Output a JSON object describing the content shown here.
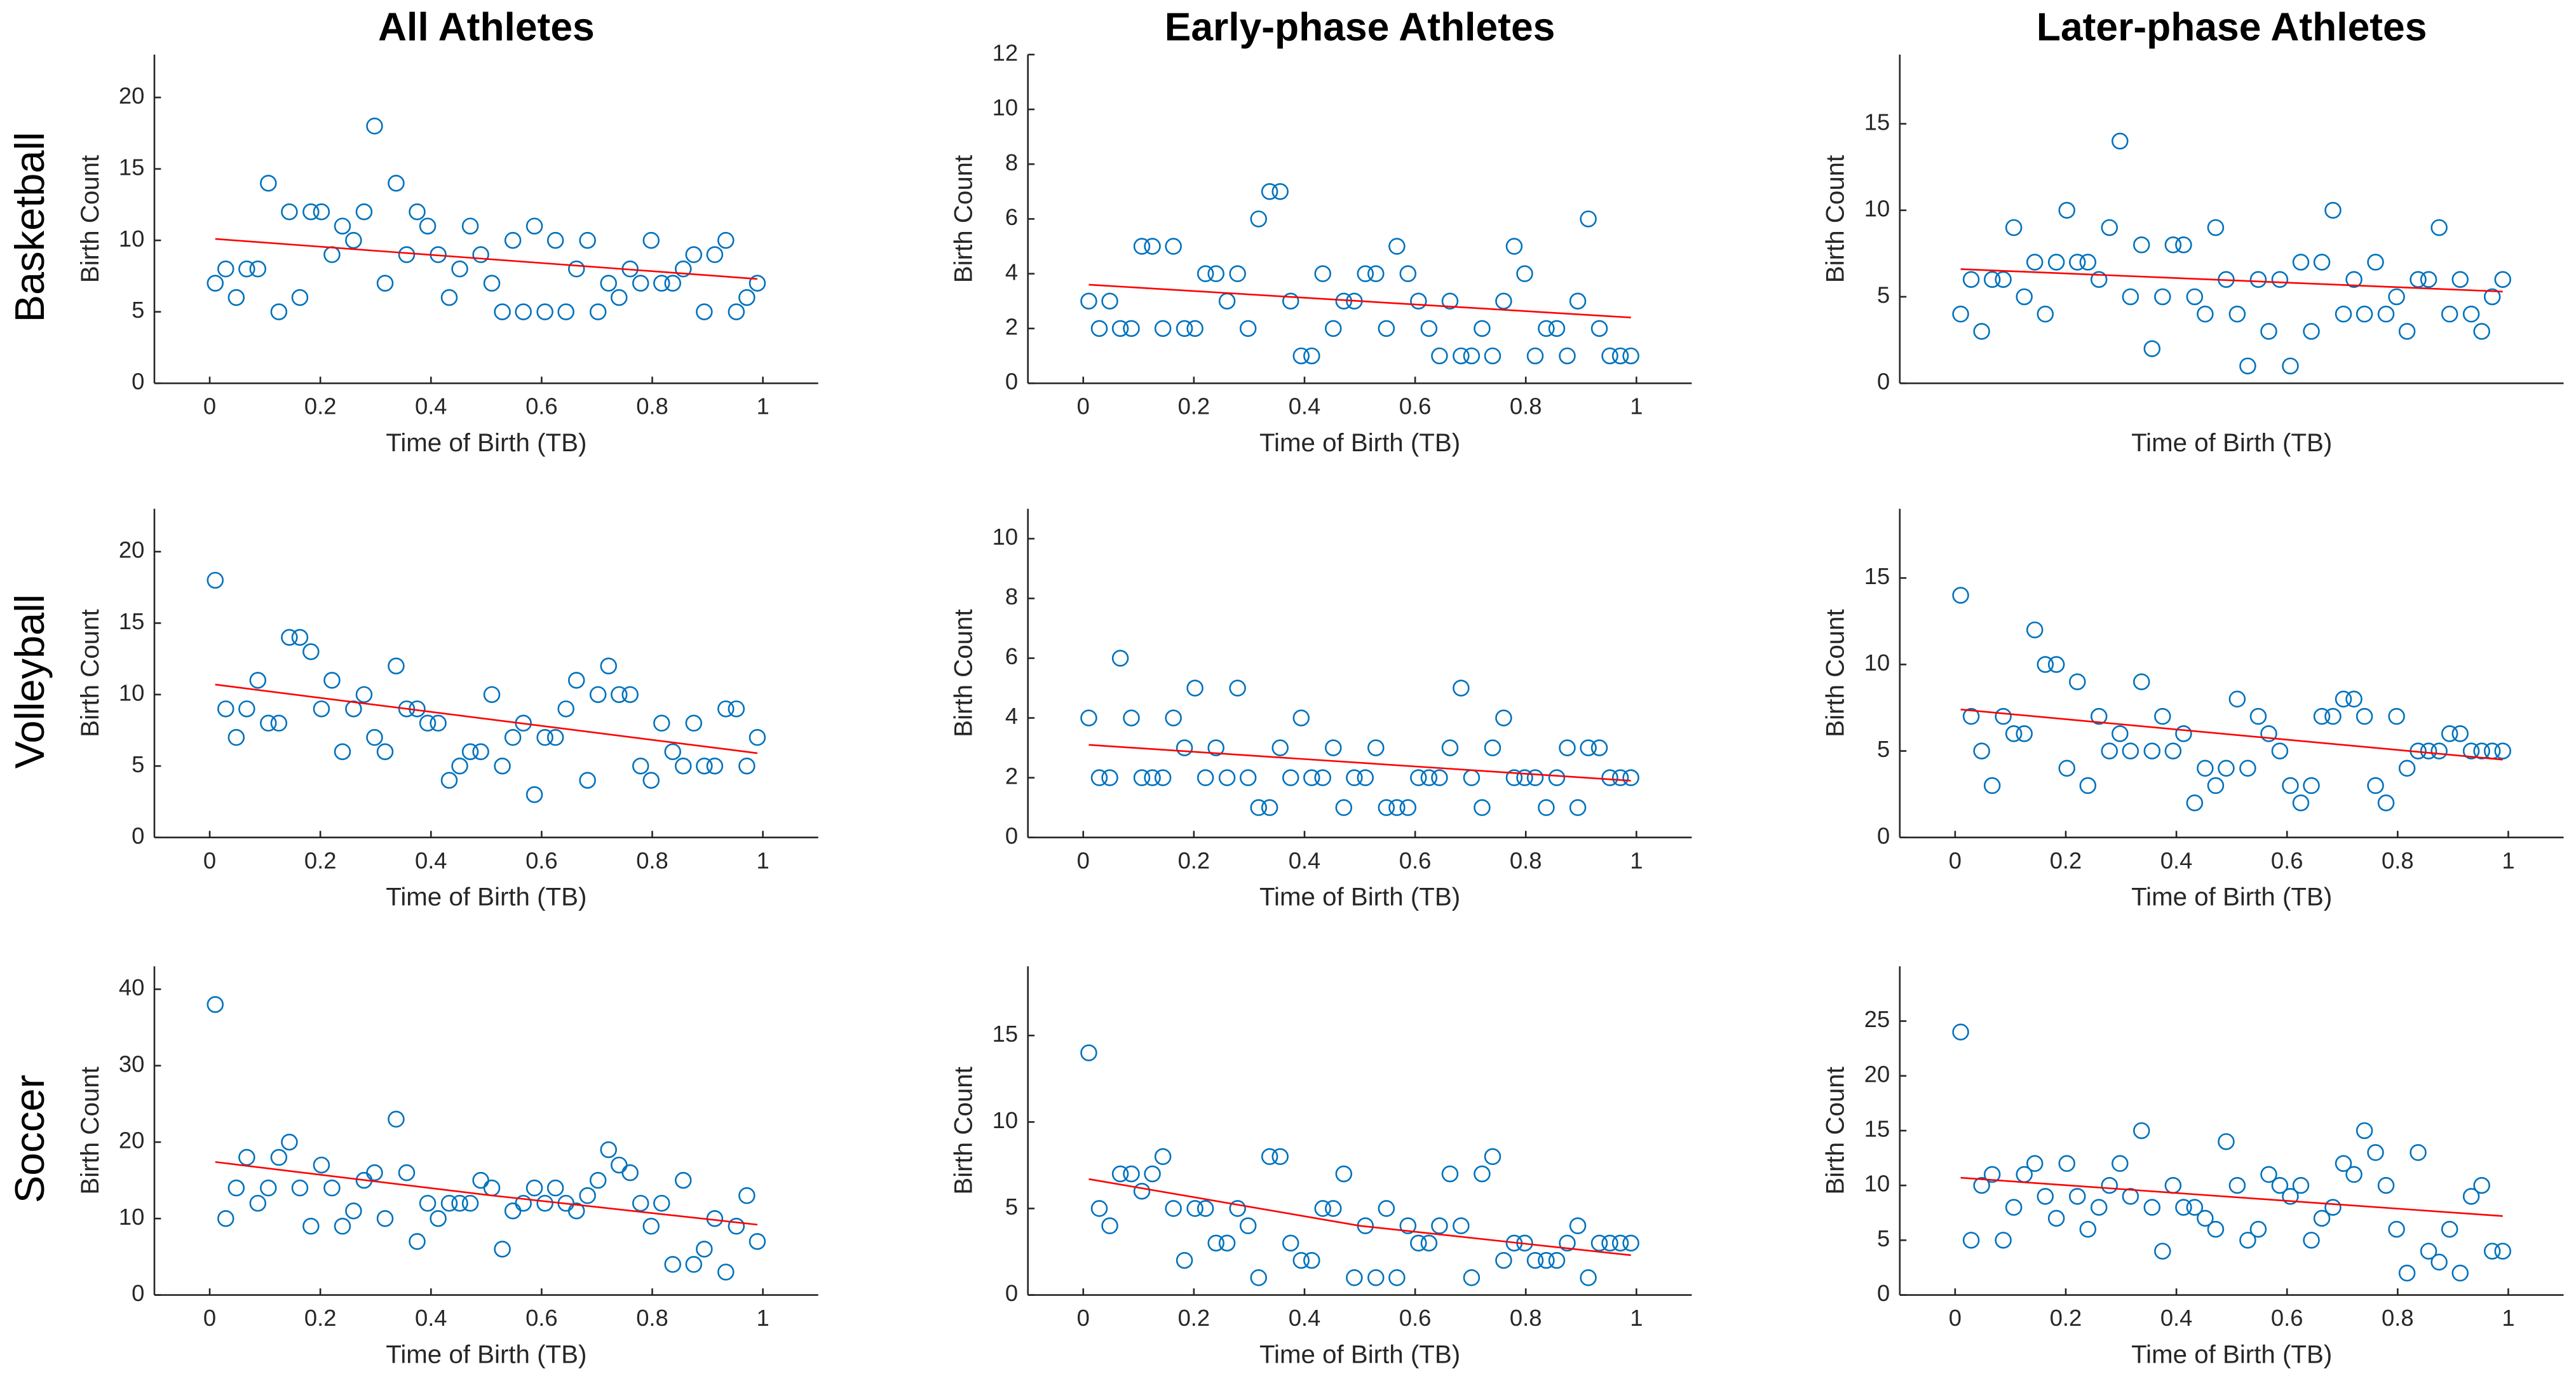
{
  "column_titles": [
    "All Athletes",
    "Early-phase Athletes",
    "Later-phase Athletes"
  ],
  "row_labels": [
    "Basketball",
    "Volleyball",
    "Soccer"
  ],
  "chart_data": [
    {
      "type": "scatter",
      "xlabel": "Time of Birth (TB)",
      "ylabel": "Birth Count",
      "color": "#0072bd",
      "x": [
        0.01,
        0.029,
        0.048,
        0.067,
        0.087,
        0.106,
        0.125,
        0.144,
        0.163,
        0.183,
        0.202,
        0.221,
        0.24,
        0.26,
        0.279,
        0.298,
        0.317,
        0.337,
        0.356,
        0.375,
        0.394,
        0.413,
        0.433,
        0.452,
        0.471,
        0.49,
        0.51,
        0.529,
        0.548,
        0.567,
        0.587,
        0.606,
        0.625,
        0.644,
        0.663,
        0.683,
        0.702,
        0.721,
        0.74,
        0.76,
        0.779,
        0.798,
        0.817,
        0.837,
        0.856,
        0.875,
        0.894,
        0.913,
        0.933,
        0.952,
        0.971,
        0.99
      ],
      "values": [
        7,
        8,
        6,
        8,
        8,
        14,
        5,
        12,
        6,
        12,
        12,
        9,
        11,
        10,
        12,
        18,
        7,
        14,
        9,
        12,
        11,
        9,
        6,
        8,
        11,
        9,
        7,
        5,
        10,
        5,
        11,
        5,
        10,
        5,
        8,
        10,
        5,
        7,
        6,
        8,
        7,
        10,
        7,
        7,
        8,
        9,
        5,
        9,
        10,
        5,
        6,
        7
      ],
      "fit": {
        "color": "#ff0000",
        "x": [
          0.01,
          0.99
        ],
        "values": [
          10.1,
          7.3
        ]
      },
      "xlim": [
        -0.1,
        1.1
      ],
      "ylim": [
        0,
        23
      ],
      "xticks": [
        0,
        0.2,
        0.4,
        0.6,
        0.8,
        1
      ],
      "yticks": [
        0,
        5,
        10,
        15,
        20
      ]
    },
    {
      "type": "scatter",
      "xlabel": "Time of Birth (TB)",
      "ylabel": "Birth Count",
      "color": "#0072bd",
      "x": [
        0.01,
        0.029,
        0.048,
        0.067,
        0.087,
        0.106,
        0.125,
        0.144,
        0.163,
        0.183,
        0.202,
        0.221,
        0.24,
        0.26,
        0.279,
        0.298,
        0.317,
        0.337,
        0.356,
        0.375,
        0.394,
        0.413,
        0.433,
        0.452,
        0.471,
        0.49,
        0.51,
        0.529,
        0.548,
        0.567,
        0.587,
        0.606,
        0.625,
        0.644,
        0.663,
        0.683,
        0.702,
        0.721,
        0.74,
        0.76,
        0.779,
        0.798,
        0.817,
        0.837,
        0.856,
        0.875,
        0.894,
        0.913,
        0.933,
        0.952,
        0.971,
        0.99
      ],
      "values": [
        3,
        2,
        3,
        2,
        2,
        5,
        5,
        2,
        5,
        2,
        2,
        4,
        4,
        3,
        4,
        2,
        6,
        7,
        7,
        3,
        1,
        1,
        4,
        2,
        3,
        3,
        4,
        4,
        2,
        5,
        4,
        3,
        2,
        1,
        3,
        1,
        1,
        2,
        1,
        3,
        5,
        4,
        1,
        2,
        2,
        1,
        3,
        6,
        2,
        1,
        1,
        1
      ],
      "fit": {
        "color": "#ff0000",
        "x": [
          0.01,
          0.99
        ],
        "values": [
          3.6,
          2.4
        ]
      },
      "xlim": [
        -0.1,
        1.1
      ],
      "ylim": [
        0,
        12
      ],
      "xticks": [
        0,
        0.2,
        0.4,
        0.6,
        0.8,
        1
      ],
      "yticks": [
        0,
        2,
        4,
        6,
        8,
        10,
        12
      ]
    },
    {
      "type": "scatter",
      "xlabel": "Time of Birth (TB)",
      "ylabel": "Birth Count",
      "color": "#0072bd",
      "x": [
        0.01,
        0.029,
        0.048,
        0.067,
        0.087,
        0.106,
        0.125,
        0.144,
        0.163,
        0.183,
        0.202,
        0.221,
        0.24,
        0.26,
        0.279,
        0.298,
        0.317,
        0.337,
        0.356,
        0.375,
        0.394,
        0.413,
        0.433,
        0.452,
        0.471,
        0.49,
        0.51,
        0.529,
        0.548,
        0.567,
        0.587,
        0.606,
        0.625,
        0.644,
        0.663,
        0.683,
        0.702,
        0.721,
        0.74,
        0.76,
        0.779,
        0.798,
        0.817,
        0.837,
        0.856,
        0.875,
        0.894,
        0.913,
        0.933,
        0.952,
        0.971,
        0.99
      ],
      "values": [
        4,
        6,
        3,
        6,
        6,
        9,
        5,
        7,
        4,
        7,
        10,
        7,
        7,
        6,
        9,
        14,
        5,
        8,
        2,
        5,
        8,
        8,
        5,
        4,
        9,
        6,
        4,
        1,
        6,
        3,
        6,
        1,
        7,
        3,
        7,
        10,
        4,
        6,
        4,
        7,
        4,
        5,
        3,
        6,
        6,
        9,
        4,
        6,
        4,
        3,
        5,
        6
      ],
      "fit": {
        "color": "#ff0000",
        "x": [
          0.01,
          0.99
        ],
        "values": [
          6.6,
          5.3
        ]
      },
      "xlim": [
        -0.1,
        1.1
      ],
      "ylim": [
        0,
        19
      ],
      "xticks": [],
      "yticks": [
        0,
        5,
        10,
        15
      ]
    },
    {
      "type": "scatter",
      "xlabel": "Time of Birth (TB)",
      "ylabel": "Birth Count",
      "color": "#0072bd",
      "x": [
        0.01,
        0.029,
        0.048,
        0.067,
        0.087,
        0.106,
        0.125,
        0.144,
        0.163,
        0.183,
        0.202,
        0.221,
        0.24,
        0.26,
        0.279,
        0.298,
        0.317,
        0.337,
        0.356,
        0.375,
        0.394,
        0.413,
        0.433,
        0.452,
        0.471,
        0.49,
        0.51,
        0.529,
        0.548,
        0.567,
        0.587,
        0.606,
        0.625,
        0.644,
        0.663,
        0.683,
        0.702,
        0.721,
        0.74,
        0.76,
        0.779,
        0.798,
        0.817,
        0.837,
        0.856,
        0.875,
        0.894,
        0.913,
        0.933,
        0.952,
        0.971,
        0.99
      ],
      "values": [
        18,
        9,
        7,
        9,
        11,
        8,
        8,
        14,
        14,
        13,
        9,
        11,
        6,
        9,
        10,
        7,
        6,
        12,
        9,
        9,
        8,
        8,
        4,
        5,
        6,
        6,
        10,
        5,
        7,
        8,
        3,
        7,
        7,
        9,
        11,
        4,
        10,
        12,
        10,
        10,
        5,
        4,
        8,
        6,
        5,
        8,
        5,
        5,
        9,
        9,
        5,
        7
      ],
      "fit": {
        "color": "#ff0000",
        "x": [
          0.01,
          0.99
        ],
        "values": [
          10.7,
          5.9
        ]
      },
      "xlim": [
        -0.1,
        1.1
      ],
      "ylim": [
        0,
        23
      ],
      "xticks": [
        0,
        0.2,
        0.4,
        0.6,
        0.8,
        1
      ],
      "yticks": [
        0,
        5,
        10,
        15,
        20
      ]
    },
    {
      "type": "scatter",
      "xlabel": "Time of Birth (TB)",
      "ylabel": "Birth Count",
      "color": "#0072bd",
      "x": [
        0.01,
        0.029,
        0.048,
        0.067,
        0.087,
        0.106,
        0.125,
        0.144,
        0.163,
        0.183,
        0.202,
        0.221,
        0.24,
        0.26,
        0.279,
        0.298,
        0.317,
        0.337,
        0.356,
        0.375,
        0.394,
        0.413,
        0.433,
        0.452,
        0.471,
        0.49,
        0.51,
        0.529,
        0.548,
        0.567,
        0.587,
        0.606,
        0.625,
        0.644,
        0.663,
        0.683,
        0.702,
        0.721,
        0.74,
        0.76,
        0.779,
        0.798,
        0.817,
        0.837,
        0.856,
        0.875,
        0.894,
        0.913,
        0.933,
        0.952,
        0.971,
        0.99
      ],
      "values": [
        4,
        2,
        2,
        6,
        4,
        2,
        2,
        2,
        4,
        3,
        5,
        2,
        3,
        2,
        5,
        2,
        1,
        1,
        3,
        2,
        4,
        2,
        2,
        3,
        1,
        2,
        2,
        3,
        1,
        1,
        1,
        2,
        2,
        2,
        3,
        5,
        2,
        1,
        3,
        4,
        2,
        2,
        2,
        1,
        2,
        3,
        1,
        3,
        3,
        2,
        2,
        2
      ],
      "fit": {
        "color": "#ff0000",
        "x": [
          0.01,
          0.99
        ],
        "values": [
          3.1,
          1.9
        ]
      },
      "xlim": [
        -0.1,
        1.1
      ],
      "ylim": [
        0,
        11
      ],
      "xticks": [
        0,
        0.2,
        0.4,
        0.6,
        0.8,
        1
      ],
      "yticks": [
        0,
        2,
        4,
        6,
        8,
        10
      ]
    },
    {
      "type": "scatter",
      "xlabel": "Time of Birth (TB)",
      "ylabel": "Birth Count",
      "color": "#0072bd",
      "x": [
        0.01,
        0.029,
        0.048,
        0.067,
        0.087,
        0.106,
        0.125,
        0.144,
        0.163,
        0.183,
        0.202,
        0.221,
        0.24,
        0.26,
        0.279,
        0.298,
        0.317,
        0.337,
        0.356,
        0.375,
        0.394,
        0.413,
        0.433,
        0.452,
        0.471,
        0.49,
        0.51,
        0.529,
        0.548,
        0.567,
        0.587,
        0.606,
        0.625,
        0.644,
        0.663,
        0.683,
        0.702,
        0.721,
        0.74,
        0.76,
        0.779,
        0.798,
        0.817,
        0.837,
        0.856,
        0.875,
        0.894,
        0.913,
        0.933,
        0.952,
        0.971,
        0.99
      ],
      "values": [
        14,
        7,
        5,
        3,
        7,
        6,
        6,
        12,
        10,
        10,
        4,
        9,
        3,
        7,
        5,
        6,
        5,
        9,
        5,
        7,
        5,
        6,
        2,
        4,
        3,
        4,
        8,
        4,
        7,
        6,
        5,
        3,
        2,
        3,
        7,
        7,
        8,
        8,
        7,
        3,
        2,
        7,
        4,
        5,
        5,
        5,
        6,
        6,
        5,
        5,
        5,
        5
      ],
      "fit": {
        "color": "#ff0000",
        "x": [
          0.01,
          0.99
        ],
        "values": [
          7.4,
          4.5
        ]
      },
      "xlim": [
        -0.1,
        1.1
      ],
      "ylim": [
        0,
        19
      ],
      "xticks": [
        0,
        0.2,
        0.4,
        0.6,
        0.8,
        1
      ],
      "yticks": [
        0,
        5,
        10,
        15
      ]
    },
    {
      "type": "scatter",
      "xlabel": "Time of Birth (TB)",
      "ylabel": "Birth Count",
      "color": "#0072bd",
      "x": [
        0.01,
        0.029,
        0.048,
        0.067,
        0.087,
        0.106,
        0.125,
        0.144,
        0.163,
        0.183,
        0.202,
        0.221,
        0.24,
        0.26,
        0.279,
        0.298,
        0.317,
        0.337,
        0.356,
        0.375,
        0.394,
        0.413,
        0.433,
        0.452,
        0.471,
        0.49,
        0.51,
        0.529,
        0.548,
        0.567,
        0.587,
        0.606,
        0.625,
        0.644,
        0.663,
        0.683,
        0.702,
        0.721,
        0.74,
        0.76,
        0.779,
        0.798,
        0.817,
        0.837,
        0.856,
        0.875,
        0.894,
        0.913,
        0.933,
        0.952,
        0.971,
        0.99
      ],
      "values": [
        38,
        10,
        14,
        18,
        12,
        14,
        18,
        20,
        14,
        9,
        17,
        14,
        9,
        11,
        15,
        16,
        10,
        23,
        16,
        7,
        12,
        10,
        12,
        12,
        12,
        15,
        14,
        6,
        11,
        12,
        14,
        12,
        14,
        12,
        11,
        13,
        15,
        19,
        17,
        16,
        12,
        9,
        12,
        4,
        15,
        4,
        6,
        10,
        3,
        9,
        13,
        7
      ],
      "fit": {
        "color": "#ff0000",
        "x": [
          0.01,
          0.5,
          0.99
        ],
        "values": [
          17.4,
          13.1,
          9.2
        ]
      },
      "xlim": [
        -0.1,
        1.1
      ],
      "ylim": [
        0,
        43
      ],
      "xticks": [
        0,
        0.2,
        0.4,
        0.6,
        0.8,
        1
      ],
      "yticks": [
        0,
        10,
        20,
        30,
        40
      ]
    },
    {
      "type": "scatter",
      "xlabel": "Time of Birth (TB)",
      "ylabel": "Birth Count",
      "color": "#0072bd",
      "x": [
        0.01,
        0.029,
        0.048,
        0.067,
        0.087,
        0.106,
        0.125,
        0.144,
        0.163,
        0.183,
        0.202,
        0.221,
        0.24,
        0.26,
        0.279,
        0.298,
        0.317,
        0.337,
        0.356,
        0.375,
        0.394,
        0.413,
        0.433,
        0.452,
        0.471,
        0.49,
        0.51,
        0.529,
        0.548,
        0.567,
        0.587,
        0.606,
        0.625,
        0.644,
        0.663,
        0.683,
        0.702,
        0.721,
        0.74,
        0.76,
        0.779,
        0.798,
        0.817,
        0.837,
        0.856,
        0.875,
        0.894,
        0.913,
        0.933,
        0.952,
        0.971,
        0.99
      ],
      "values": [
        14,
        5,
        4,
        7,
        7,
        6,
        7,
        8,
        5,
        2,
        5,
        5,
        3,
        3,
        5,
        4,
        1,
        8,
        8,
        3,
        2,
        2,
        5,
        5,
        7,
        1,
        4,
        1,
        5,
        1,
        4,
        3,
        3,
        4,
        7,
        4,
        1,
        7,
        8,
        2,
        3,
        3,
        2,
        2,
        2,
        3,
        4,
        1,
        3,
        3,
        3,
        3
      ],
      "fit": {
        "color": "#ff0000",
        "x": [
          0.01,
          0.5,
          0.99
        ],
        "values": [
          6.7,
          4,
          2.3
        ]
      },
      "xlim": [
        -0.1,
        1.1
      ],
      "ylim": [
        0,
        19
      ],
      "xticks": [
        0,
        0.2,
        0.4,
        0.6,
        0.8,
        1
      ],
      "yticks": [
        0,
        5,
        10,
        15
      ]
    },
    {
      "type": "scatter",
      "xlabel": "Time of Birth (TB)",
      "ylabel": "Birth Count",
      "color": "#0072bd",
      "x": [
        0.01,
        0.029,
        0.048,
        0.067,
        0.087,
        0.106,
        0.125,
        0.144,
        0.163,
        0.183,
        0.202,
        0.221,
        0.24,
        0.26,
        0.279,
        0.298,
        0.317,
        0.337,
        0.356,
        0.375,
        0.394,
        0.413,
        0.433,
        0.452,
        0.471,
        0.49,
        0.51,
        0.529,
        0.548,
        0.567,
        0.587,
        0.606,
        0.625,
        0.644,
        0.663,
        0.683,
        0.702,
        0.721,
        0.74,
        0.76,
        0.779,
        0.798,
        0.817,
        0.837,
        0.856,
        0.875,
        0.894,
        0.913,
        0.933,
        0.952,
        0.971,
        0.99
      ],
      "values": [
        24,
        5,
        10,
        11,
        5,
        8,
        11,
        12,
        9,
        7,
        12,
        9,
        6,
        8,
        10,
        12,
        9,
        15,
        8,
        4,
        10,
        8,
        8,
        7,
        6,
        14,
        10,
        5,
        6,
        11,
        10,
        9,
        10,
        5,
        7,
        8,
        12,
        11,
        15,
        13,
        10,
        6,
        2,
        13,
        4,
        3,
        6,
        2,
        9,
        10,
        4,
        4
      ],
      "fit": {
        "color": "#ff0000",
        "x": [
          0.01,
          0.99
        ],
        "values": [
          10.7,
          7.2
        ]
      },
      "xlim": [
        -0.1,
        1.1
      ],
      "ylim": [
        0,
        30
      ],
      "xticks": [
        0,
        0.2,
        0.4,
        0.6,
        0.8,
        1
      ],
      "yticks": [
        0,
        5,
        10,
        15,
        20,
        25
      ]
    }
  ]
}
